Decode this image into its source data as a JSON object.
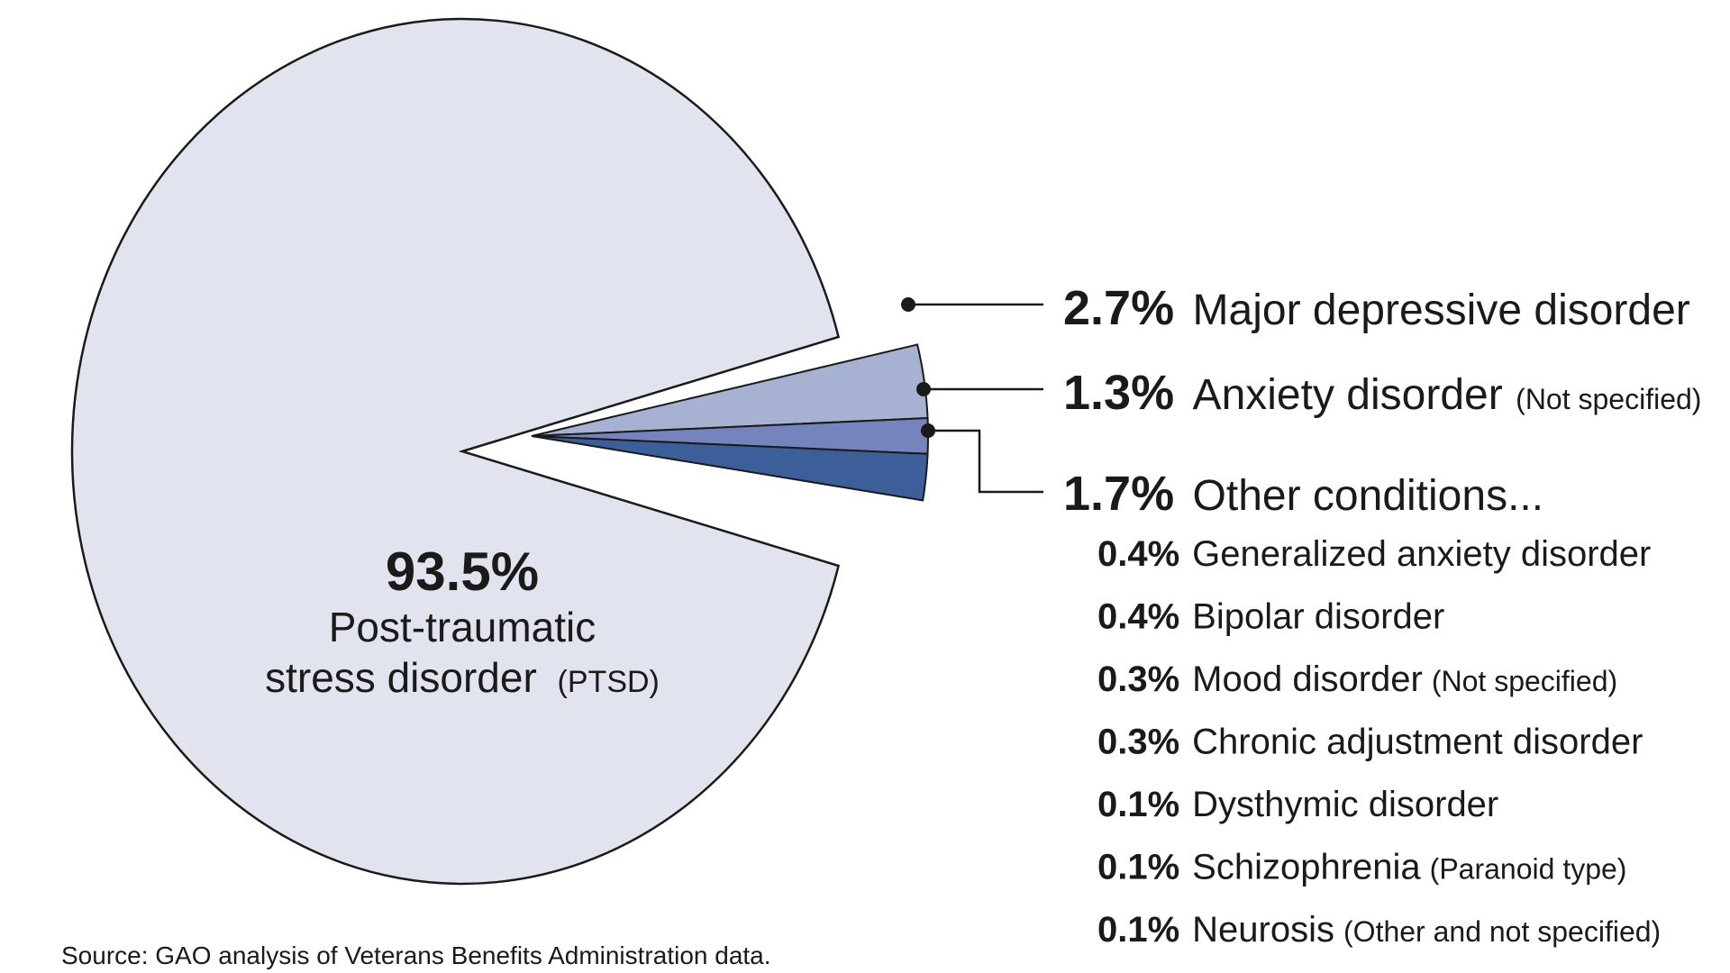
{
  "chart_data": {
    "type": "pie",
    "slices": [
      {
        "label": "Post-traumatic stress disorder",
        "note": "(PTSD)",
        "value": 93.5,
        "pct_label": "93.5%",
        "color": "#e1e4ef"
      },
      {
        "label": "Major depressive disorder",
        "note": "",
        "value": 2.7,
        "pct_label": "2.7%",
        "color": "#a7b1d1"
      },
      {
        "label": "Anxiety disorder",
        "note": "(Not specified)",
        "value": 1.3,
        "pct_label": "1.3%",
        "color": "#7584bc"
      },
      {
        "label": "Other conditions...",
        "note": "",
        "value": 1.7,
        "pct_label": "1.7%",
        "color": "#3d5f99"
      }
    ],
    "ptsd_label_line1": "Post-traumatic",
    "ptsd_label_line2": "stress disorder",
    "other_breakdown": [
      {
        "pct_label": "0.4%",
        "label": "Generalized anxiety disorder",
        "note": ""
      },
      {
        "pct_label": "0.4%",
        "label": "Bipolar disorder",
        "note": ""
      },
      {
        "pct_label": "0.3%",
        "label": "Mood disorder",
        "note": "(Not specified)"
      },
      {
        "pct_label": "0.3%",
        "label": "Chronic adjustment disorder",
        "note": ""
      },
      {
        "pct_label": "0.1%",
        "label": "Dysthymic disorder",
        "note": ""
      },
      {
        "pct_label": "0.1%",
        "label": "Schizophrenia",
        "note": "(Paranoid type)"
      },
      {
        "pct_label": "0.1%",
        "label": "Neurosis",
        "note": "(Other and not specified)"
      }
    ]
  },
  "source": "Source: GAO analysis of Veterans Benefits Administration data."
}
